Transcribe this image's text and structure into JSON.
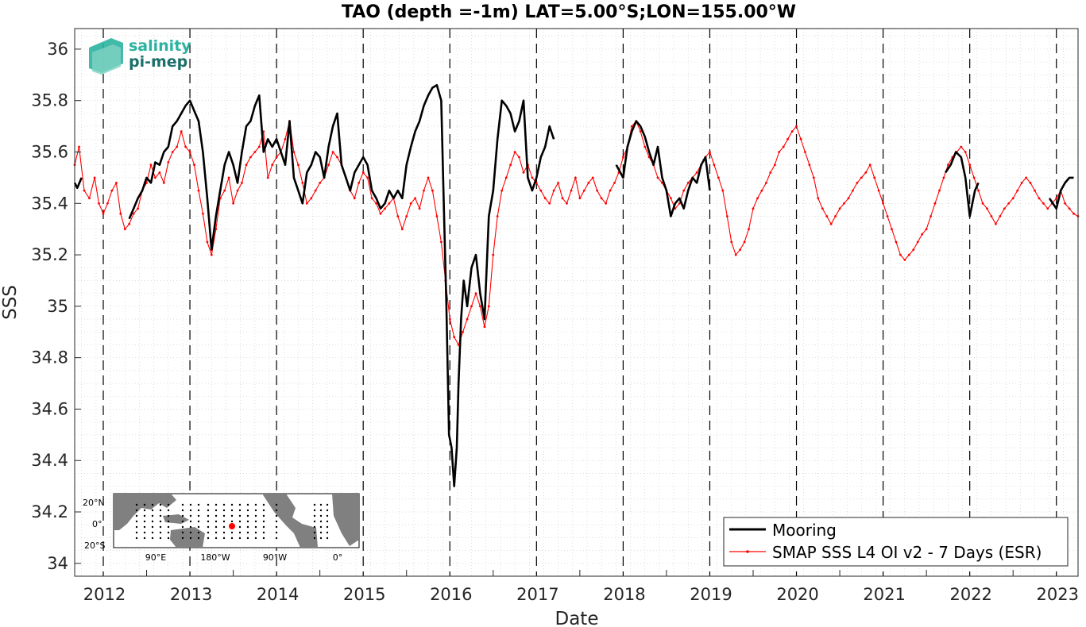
{
  "chart_data": {
    "type": "line",
    "title": "TAO (depth =-1m) LAT=5.00°S;LON=155.00°W",
    "xlabel": "Date",
    "ylabel": "SSS",
    "xlim": [
      2011.67,
      2023.25
    ],
    "ylim": [
      33.95,
      36.08
    ],
    "x_ticks": [
      "2012",
      "2013",
      "2014",
      "2015",
      "2016",
      "2017",
      "2018",
      "2019",
      "2020",
      "2021",
      "2022",
      "2023"
    ],
    "y_ticks": [
      "34",
      "34.2",
      "34.4",
      "34.6",
      "34.8",
      "35",
      "35.2",
      "35.4",
      "35.6",
      "35.8",
      "36"
    ],
    "year_boundaries": [
      2012,
      2013,
      2014,
      2015,
      2016,
      2017,
      2018,
      2019,
      2020,
      2021,
      2022,
      2023
    ],
    "grid": "minor dotted",
    "legend_position": "bottom-right",
    "series": [
      {
        "name": "Mooring",
        "color": "#000000",
        "x": [
          2011.67,
          2011.7,
          2011.75,
          2012.3,
          2012.35,
          2012.4,
          2012.45,
          2012.5,
          2012.55,
          2012.6,
          2012.65,
          2012.7,
          2012.75,
          2012.8,
          2012.85,
          2012.9,
          2012.95,
          2013.0,
          2013.05,
          2013.1,
          2013.15,
          2013.2,
          2013.25,
          2013.3,
          2013.35,
          2013.4,
          2013.45,
          2013.5,
          2013.55,
          2013.6,
          2013.65,
          2013.7,
          2013.75,
          2013.8,
          2013.85,
          2013.9,
          2013.95,
          2014.0,
          2014.05,
          2014.1,
          2014.15,
          2014.2,
          2014.25,
          2014.3,
          2014.35,
          2014.4,
          2014.45,
          2014.5,
          2014.55,
          2014.6,
          2014.65,
          2014.7,
          2014.75,
          2014.8,
          2014.85,
          2014.9,
          2014.95,
          2015.0,
          2015.05,
          2015.1,
          2015.15,
          2015.2,
          2015.25,
          2015.3,
          2015.35,
          2015.4,
          2015.45,
          2015.5,
          2015.55,
          2015.6,
          2015.65,
          2015.7,
          2015.75,
          2015.8,
          2015.85,
          2015.9,
          2015.93,
          2015.96,
          2015.99,
          2016.02,
          2016.05,
          2016.08,
          2016.1,
          2016.13,
          2016.16,
          2016.2,
          2016.25,
          2016.3,
          2016.35,
          2016.4,
          2016.45,
          2016.5,
          2016.55,
          2016.6,
          2016.65,
          2016.7,
          2016.75,
          2016.8,
          2016.85,
          2016.9,
          2016.95,
          2017.0,
          2017.05,
          2017.1,
          2017.15,
          2017.2,
          2017.92,
          2018.0,
          2018.05,
          2018.1,
          2018.15,
          2018.2,
          2018.25,
          2018.3,
          2018.35,
          2018.4,
          2018.45,
          2018.5,
          2018.55,
          2018.6,
          2018.65,
          2018.7,
          2018.75,
          2018.8,
          2018.85,
          2018.9,
          2018.95,
          2019.0,
          2021.72,
          2021.78,
          2021.84,
          2021.9,
          2021.95,
          2022.0,
          2022.06,
          2022.1,
          2022.92,
          2023.0,
          2023.05,
          2023.1,
          2023.15,
          2023.2
        ],
        "y": [
          35.48,
          35.46,
          35.5,
          35.34,
          35.38,
          35.42,
          35.45,
          35.5,
          35.48,
          35.56,
          35.55,
          35.6,
          35.62,
          35.7,
          35.72,
          35.75,
          35.78,
          35.8,
          35.76,
          35.72,
          35.6,
          35.42,
          35.22,
          35.35,
          35.45,
          35.55,
          35.6,
          35.55,
          35.48,
          35.6,
          35.7,
          35.72,
          35.78,
          35.82,
          35.6,
          35.65,
          35.62,
          35.65,
          35.6,
          35.55,
          35.72,
          35.5,
          35.45,
          35.4,
          35.52,
          35.55,
          35.6,
          35.58,
          35.5,
          35.62,
          35.7,
          35.75,
          35.55,
          35.5,
          35.45,
          35.52,
          35.55,
          35.58,
          35.55,
          35.45,
          35.42,
          35.38,
          35.4,
          35.45,
          35.42,
          35.45,
          35.42,
          35.55,
          35.62,
          35.68,
          35.72,
          35.78,
          35.82,
          35.85,
          35.86,
          35.8,
          35.4,
          35.0,
          34.5,
          34.45,
          34.3,
          34.45,
          34.7,
          34.95,
          35.1,
          35.0,
          35.15,
          35.2,
          35.05,
          34.95,
          35.35,
          35.45,
          35.65,
          35.8,
          35.78,
          35.75,
          35.68,
          35.72,
          35.8,
          35.5,
          35.45,
          35.5,
          35.58,
          35.62,
          35.7,
          35.65,
          35.55,
          35.5,
          35.62,
          35.68,
          35.72,
          35.7,
          35.66,
          35.6,
          35.55,
          35.62,
          35.5,
          35.45,
          35.35,
          35.4,
          35.42,
          35.38,
          35.45,
          35.5,
          35.48,
          35.55,
          35.58,
          35.45,
          35.52,
          35.55,
          35.6,
          35.58,
          35.5,
          35.35,
          35.45,
          35.48,
          35.42,
          35.38,
          35.45,
          35.48,
          35.5,
          35.5
        ]
      },
      {
        "name": "SMAP SSS L4 OI v2 - 7 Days (ESR)",
        "color": "#ff0000",
        "x": [
          2011.67,
          2011.72,
          2011.78,
          2011.84,
          2011.9,
          2011.95,
          2012.0,
          2012.05,
          2012.1,
          2012.15,
          2012.2,
          2012.25,
          2012.3,
          2012.35,
          2012.4,
          2012.45,
          2012.5,
          2012.55,
          2012.6,
          2012.65,
          2012.7,
          2012.75,
          2012.8,
          2012.85,
          2012.9,
          2012.95,
          2013.0,
          2013.05,
          2013.1,
          2013.15,
          2013.2,
          2013.25,
          2013.3,
          2013.35,
          2013.4,
          2013.45,
          2013.5,
          2013.55,
          2013.6,
          2013.65,
          2013.7,
          2013.75,
          2013.8,
          2013.85,
          2013.9,
          2013.95,
          2014.0,
          2014.05,
          2014.1,
          2014.15,
          2014.2,
          2014.25,
          2014.3,
          2014.35,
          2014.4,
          2014.45,
          2014.5,
          2014.55,
          2014.6,
          2014.65,
          2014.7,
          2014.75,
          2014.8,
          2014.85,
          2014.9,
          2014.95,
          2015.0,
          2015.05,
          2015.1,
          2015.15,
          2015.2,
          2015.25,
          2015.3,
          2015.35,
          2015.4,
          2015.45,
          2015.5,
          2015.55,
          2015.6,
          2015.65,
          2015.7,
          2015.75,
          2015.8,
          2015.85,
          2015.9,
          2015.95,
          2016.0,
          2016.05,
          2016.1,
          2016.15,
          2016.2,
          2016.25,
          2016.3,
          2016.35,
          2016.4,
          2016.45,
          2016.5,
          2016.55,
          2016.6,
          2016.65,
          2016.7,
          2016.75,
          2016.8,
          2016.85,
          2016.9,
          2016.95,
          2017.0,
          2017.05,
          2017.1,
          2017.15,
          2017.2,
          2017.25,
          2017.3,
          2017.35,
          2017.4,
          2017.45,
          2017.5,
          2017.55,
          2017.6,
          2017.65,
          2017.7,
          2017.75,
          2017.8,
          2017.85,
          2017.9,
          2017.95,
          2018.0,
          2018.05,
          2018.1,
          2018.15,
          2018.2,
          2018.25,
          2018.3,
          2018.35,
          2018.4,
          2018.45,
          2018.5,
          2018.55,
          2018.6,
          2018.65,
          2018.7,
          2018.75,
          2018.8,
          2018.85,
          2018.9,
          2018.95,
          2019.0,
          2019.05,
          2019.1,
          2019.15,
          2019.2,
          2019.25,
          2019.3,
          2019.35,
          2019.4,
          2019.45,
          2019.5,
          2019.55,
          2019.6,
          2019.65,
          2019.7,
          2019.75,
          2019.8,
          2019.85,
          2019.9,
          2019.95,
          2020.0,
          2020.05,
          2020.1,
          2020.15,
          2020.2,
          2020.25,
          2020.3,
          2020.35,
          2020.4,
          2020.45,
          2020.5,
          2020.55,
          2020.6,
          2020.65,
          2020.7,
          2020.75,
          2020.8,
          2020.85,
          2020.9,
          2020.95,
          2021.0,
          2021.05,
          2021.1,
          2021.15,
          2021.2,
          2021.25,
          2021.3,
          2021.35,
          2021.4,
          2021.45,
          2021.5,
          2021.55,
          2021.6,
          2021.65,
          2021.7,
          2021.75,
          2021.8,
          2021.85,
          2021.9,
          2021.95,
          2022.0,
          2022.05,
          2022.1,
          2022.15,
          2022.2,
          2022.25,
          2022.3,
          2022.35,
          2022.4,
          2022.45,
          2022.5,
          2022.55,
          2022.6,
          2022.65,
          2022.7,
          2022.75,
          2022.8,
          2022.85,
          2022.9,
          2022.95,
          2023.0,
          2023.05,
          2023.1,
          2023.15,
          2023.2,
          2023.25
        ],
        "y": [
          35.55,
          35.62,
          35.45,
          35.42,
          35.5,
          35.4,
          35.36,
          35.4,
          35.45,
          35.48,
          35.36,
          35.3,
          35.32,
          35.36,
          35.38,
          35.45,
          35.48,
          35.55,
          35.5,
          35.52,
          35.48,
          35.56,
          35.6,
          35.62,
          35.68,
          35.62,
          35.6,
          35.55,
          35.45,
          35.36,
          35.25,
          35.2,
          35.3,
          35.42,
          35.45,
          35.5,
          35.4,
          35.45,
          35.48,
          35.55,
          35.58,
          35.6,
          35.62,
          35.68,
          35.5,
          35.55,
          35.58,
          35.6,
          35.65,
          35.72,
          35.6,
          35.55,
          35.48,
          35.4,
          35.42,
          35.45,
          35.48,
          35.5,
          35.55,
          35.6,
          35.58,
          35.55,
          35.5,
          35.45,
          35.42,
          35.48,
          35.52,
          35.5,
          35.42,
          35.4,
          35.36,
          35.38,
          35.4,
          35.42,
          35.35,
          35.3,
          35.35,
          35.4,
          35.42,
          35.38,
          35.45,
          35.5,
          35.45,
          35.35,
          35.25,
          35.1,
          34.95,
          34.88,
          34.85,
          34.9,
          34.95,
          35.0,
          35.05,
          35.0,
          34.92,
          35.0,
          35.2,
          35.35,
          35.45,
          35.5,
          35.55,
          35.6,
          35.58,
          35.52,
          35.55,
          35.5,
          35.48,
          35.45,
          35.42,
          35.4,
          35.45,
          35.48,
          35.42,
          35.4,
          35.45,
          35.5,
          35.42,
          35.45,
          35.48,
          35.5,
          35.45,
          35.42,
          35.4,
          35.45,
          35.48,
          35.52,
          35.58,
          35.62,
          35.7,
          35.72,
          35.68,
          35.62,
          35.58,
          35.55,
          35.5,
          35.48,
          35.45,
          35.42,
          35.38,
          35.4,
          35.45,
          35.48,
          35.5,
          35.52,
          35.55,
          35.58,
          35.6,
          35.55,
          35.5,
          35.45,
          35.35,
          35.25,
          35.2,
          35.22,
          35.25,
          35.3,
          35.38,
          35.42,
          35.45,
          35.48,
          35.52,
          35.55,
          35.6,
          35.62,
          35.65,
          35.68,
          35.7,
          35.65,
          35.6,
          35.55,
          35.5,
          35.42,
          35.38,
          35.35,
          35.32,
          35.35,
          35.38,
          35.4,
          35.42,
          35.45,
          35.48,
          35.5,
          35.52,
          35.55,
          35.5,
          35.45,
          35.4,
          35.35,
          35.3,
          35.25,
          35.2,
          35.18,
          35.2,
          35.22,
          35.25,
          35.28,
          35.3,
          35.35,
          35.4,
          35.45,
          35.5,
          35.55,
          35.58,
          35.6,
          35.62,
          35.6,
          35.55,
          35.5,
          35.45,
          35.4,
          35.38,
          35.35,
          35.32,
          35.35,
          35.38,
          35.4,
          35.42,
          35.45,
          35.48,
          35.5,
          35.48,
          35.45,
          35.42,
          35.4,
          35.38,
          35.4,
          35.42,
          35.45,
          35.4,
          35.38,
          35.36,
          35.35
        ]
      }
    ]
  },
  "logo": {
    "line1": "salinity",
    "line2": "pi-mep",
    "color1": "#2bb3a0",
    "color2": "#1a6f6a"
  },
  "inset_map": {
    "lat_labels": [
      "20°N",
      "0°",
      "20°S"
    ],
    "lon_labels": [
      "90°E",
      "180°W",
      "90°W",
      "0°"
    ],
    "marker_color": "#ff0000"
  }
}
